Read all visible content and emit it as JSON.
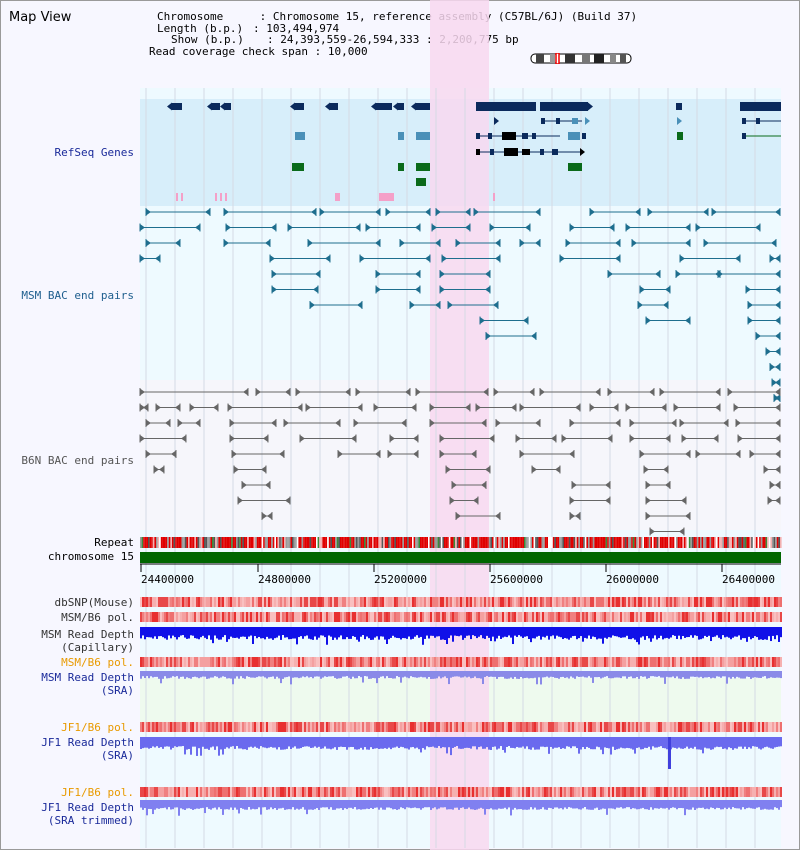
{
  "panel": {
    "title": "Map View"
  },
  "info": {
    "chromosome_key": "Chromosome",
    "chromosome_val": "Chromosome 15, reference assembly (C57BL/6J) (Build 37)",
    "length_key": "Length (b.p.)",
    "length_val": "103,494,974",
    "show_key": "Show (b.p.)",
    "show_val": "24,393,559-26,594,333 : 2,200,775 bp",
    "coverage_key": "Read coverage check span",
    "coverage_val": "10,000"
  },
  "tracks": {
    "refseq": "RefSeq Genes",
    "msm_bac": "MSM BAC end pairs",
    "b6n_bac": "B6N BAC end pairs",
    "repeat": "Repeat",
    "chromosome": "chromosome 15",
    "dbsnp": "dbSNP(Mouse)",
    "msm_b6_pol_1": "MSM/B6 pol.",
    "msm_depth_cap_1": "MSM Read Depth",
    "msm_depth_cap_2": "(Capillary)",
    "msm_b6_pol_2": "MSM/B6 pol.",
    "msm_depth_sra_1": "MSM Read Depth",
    "msm_depth_sra_2": "(SRA)",
    "jf1_b6_pol_1": "JF1/B6 pol.",
    "jf1_depth_1": "JF1 Read Depth",
    "jf1_depth_2": "(SRA)",
    "jf1_b6_pol_2": "JF1/B6 pol.",
    "jf1_depth_trim_1": "JF1 Read Depth",
    "jf1_depth_trim_2": "(SRA trimmed)"
  },
  "axis": {
    "ticks": [
      "24400000",
      "24800000",
      "25200000",
      "25600000",
      "26000000",
      "26400000"
    ]
  },
  "colors": {
    "refseq_bg": "#d7eefa",
    "gene_dark": "#0b2a5c",
    "gene_mid": "#4a90b8",
    "gene_green": "#0a6a1a",
    "msm_bac": "#1e6e8e",
    "b6n_bac": "#666666",
    "highlight": "#f8d8f0",
    "label_blue": "#1a2a9a",
    "label_orange": "#e89a00",
    "chromosome_bar": "#006600"
  }
}
